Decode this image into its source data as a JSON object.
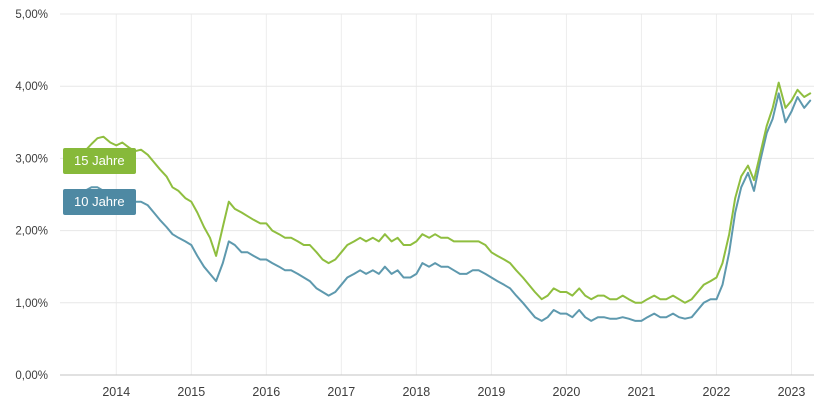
{
  "chart_data": {
    "type": "line",
    "title": "",
    "xlabel": "",
    "ylabel": "",
    "xlim": [
      2013.25,
      2023.3
    ],
    "ylim": [
      0,
      5
    ],
    "grid": true,
    "y_ticks": [
      0,
      1,
      2,
      3,
      4,
      5
    ],
    "y_tick_labels": [
      "0,00%",
      "1,00%",
      "2,00%",
      "3,00%",
      "4,00%",
      "5,00%"
    ],
    "x_ticks": [
      2014,
      2015,
      2016,
      2017,
      2018,
      2019,
      2020,
      2021,
      2022,
      2023
    ],
    "x_tick_labels": [
      "2014",
      "2015",
      "2016",
      "2017",
      "2018",
      "2019",
      "2020",
      "2021",
      "2022",
      "2023"
    ],
    "legend_position": "left-overlay",
    "style": {
      "grid_h": "#e7e7e7",
      "grid_v": "#ededed",
      "axis": "#c3c3c3",
      "label": "#3d3d3d",
      "background": "#ffffff"
    },
    "x": [
      2013.33,
      2013.42,
      2013.5,
      2013.58,
      2013.67,
      2013.75,
      2013.83,
      2013.92,
      2014,
      2014.08,
      2014.17,
      2014.25,
      2014.33,
      2014.42,
      2014.5,
      2014.58,
      2014.67,
      2014.75,
      2014.83,
      2014.92,
      2015,
      2015.08,
      2015.17,
      2015.25,
      2015.33,
      2015.42,
      2015.5,
      2015.58,
      2015.67,
      2015.75,
      2015.83,
      2015.92,
      2016,
      2016.08,
      2016.17,
      2016.25,
      2016.33,
      2016.42,
      2016.5,
      2016.58,
      2016.67,
      2016.75,
      2016.83,
      2016.92,
      2017,
      2017.08,
      2017.17,
      2017.25,
      2017.33,
      2017.42,
      2017.5,
      2017.58,
      2017.67,
      2017.75,
      2017.83,
      2017.92,
      2018,
      2018.08,
      2018.17,
      2018.25,
      2018.33,
      2018.42,
      2018.5,
      2018.58,
      2018.67,
      2018.75,
      2018.83,
      2018.92,
      2019,
      2019.08,
      2019.17,
      2019.25,
      2019.33,
      2019.42,
      2019.5,
      2019.58,
      2019.67,
      2019.75,
      2019.83,
      2019.92,
      2020,
      2020.08,
      2020.17,
      2020.25,
      2020.33,
      2020.42,
      2020.5,
      2020.58,
      2020.67,
      2020.75,
      2020.83,
      2020.92,
      2021,
      2021.08,
      2021.17,
      2021.25,
      2021.33,
      2021.42,
      2021.5,
      2021.58,
      2021.67,
      2021.75,
      2021.83,
      2021.92,
      2022,
      2022.08,
      2022.17,
      2022.25,
      2022.33,
      2022.42,
      2022.5,
      2022.58,
      2022.67,
      2022.75,
      2022.83,
      2022.92,
      2023,
      2023.08,
      2023.17,
      2023.25
    ],
    "series": [
      {
        "name": "15 Jahre",
        "color": "#8fbe3f",
        "badge_color": "#87b93a",
        "values": [
          2.9,
          2.95,
          3.05,
          3.1,
          3.2,
          3.28,
          3.3,
          3.22,
          3.18,
          3.22,
          3.15,
          3.1,
          3.12,
          3.05,
          2.95,
          2.85,
          2.75,
          2.6,
          2.55,
          2.45,
          2.4,
          2.25,
          2.05,
          1.9,
          1.65,
          2.05,
          2.4,
          2.3,
          2.25,
          2.2,
          2.15,
          2.1,
          2.1,
          2.0,
          1.95,
          1.9,
          1.9,
          1.85,
          1.8,
          1.8,
          1.7,
          1.6,
          1.55,
          1.6,
          1.7,
          1.8,
          1.85,
          1.9,
          1.85,
          1.9,
          1.85,
          1.95,
          1.85,
          1.9,
          1.8,
          1.8,
          1.85,
          1.95,
          1.9,
          1.95,
          1.9,
          1.9,
          1.85,
          1.85,
          1.85,
          1.85,
          1.85,
          1.8,
          1.7,
          1.65,
          1.6,
          1.55,
          1.45,
          1.35,
          1.25,
          1.15,
          1.05,
          1.1,
          1.2,
          1.15,
          1.15,
          1.1,
          1.2,
          1.1,
          1.05,
          1.1,
          1.1,
          1.05,
          1.05,
          1.1,
          1.05,
          1.0,
          1.0,
          1.05,
          1.1,
          1.05,
          1.05,
          1.1,
          1.05,
          1.0,
          1.05,
          1.15,
          1.25,
          1.3,
          1.35,
          1.55,
          1.95,
          2.45,
          2.75,
          2.9,
          2.7,
          3.05,
          3.45,
          3.7,
          4.05,
          3.7,
          3.8,
          3.95,
          3.85,
          3.9
        ]
      },
      {
        "name": "10 Jahre",
        "color": "#5e99ae",
        "badge_color": "#4e89a3",
        "values": [
          2.4,
          2.45,
          2.5,
          2.55,
          2.6,
          2.6,
          2.55,
          2.5,
          2.5,
          2.5,
          2.45,
          2.4,
          2.4,
          2.35,
          2.25,
          2.15,
          2.05,
          1.95,
          1.9,
          1.85,
          1.8,
          1.65,
          1.5,
          1.4,
          1.3,
          1.55,
          1.85,
          1.8,
          1.7,
          1.7,
          1.65,
          1.6,
          1.6,
          1.55,
          1.5,
          1.45,
          1.45,
          1.4,
          1.35,
          1.3,
          1.2,
          1.15,
          1.1,
          1.15,
          1.25,
          1.35,
          1.4,
          1.45,
          1.4,
          1.45,
          1.4,
          1.5,
          1.4,
          1.45,
          1.35,
          1.35,
          1.4,
          1.55,
          1.5,
          1.55,
          1.5,
          1.5,
          1.45,
          1.4,
          1.4,
          1.45,
          1.45,
          1.4,
          1.35,
          1.3,
          1.25,
          1.2,
          1.1,
          1.0,
          0.9,
          0.8,
          0.75,
          0.8,
          0.9,
          0.85,
          0.85,
          0.8,
          0.9,
          0.8,
          0.75,
          0.8,
          0.8,
          0.78,
          0.78,
          0.8,
          0.78,
          0.75,
          0.75,
          0.8,
          0.85,
          0.8,
          0.8,
          0.85,
          0.8,
          0.78,
          0.8,
          0.9,
          1.0,
          1.05,
          1.05,
          1.25,
          1.7,
          2.25,
          2.6,
          2.8,
          2.55,
          2.95,
          3.35,
          3.55,
          3.9,
          3.5,
          3.65,
          3.85,
          3.7,
          3.8
        ]
      }
    ]
  }
}
